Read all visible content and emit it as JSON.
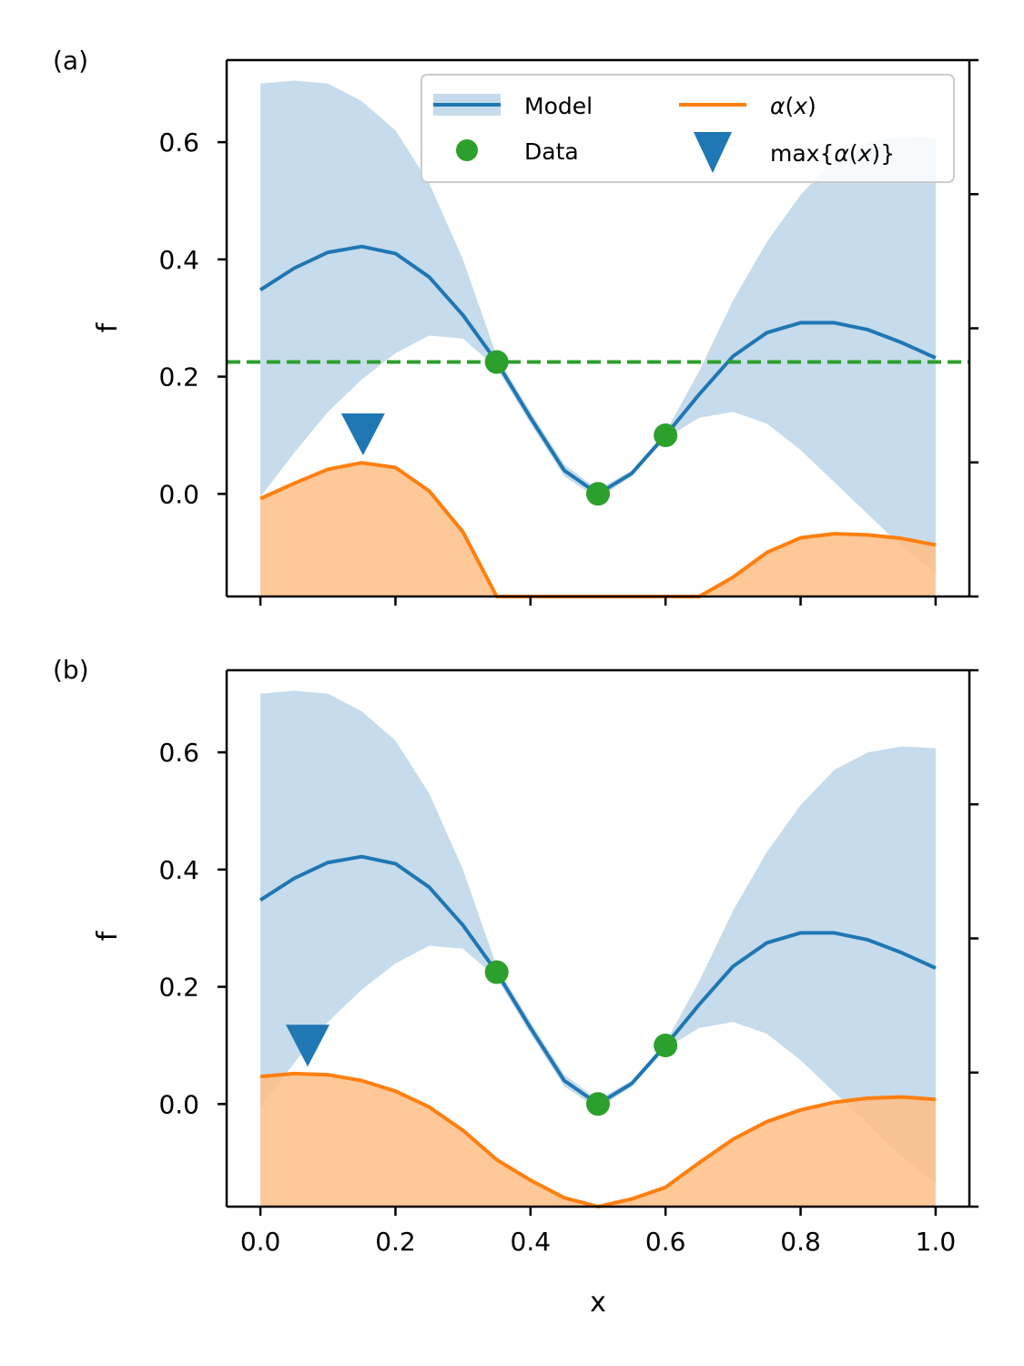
{
  "chart_data": [
    {
      "type": "line",
      "panel_label": "(a)",
      "xlabel": "",
      "ylabel": "f",
      "xlim": [
        -0.05,
        1.05
      ],
      "ylim": [
        -0.175,
        0.74
      ],
      "x_ticks": [
        0.0,
        0.2,
        0.4,
        0.6,
        0.8,
        1.0
      ],
      "x_ticklabels_shown": false,
      "y_ticks": [
        0.0,
        0.2,
        0.4,
        0.6
      ],
      "y_ticklabels": [
        "0.0",
        "0.2",
        "0.4",
        "0.6"
      ],
      "right_axis_ticks_unlabeled": 4,
      "model_mean": {
        "name": "Model",
        "color": "#1f77b4",
        "x": [
          0.0,
          0.05,
          0.1,
          0.15,
          0.2,
          0.25,
          0.3,
          0.35,
          0.4,
          0.45,
          0.5,
          0.55,
          0.6,
          0.65,
          0.7,
          0.75,
          0.8,
          0.85,
          0.9,
          0.95,
          1.0
        ],
        "y": [
          0.348,
          0.385,
          0.412,
          0.422,
          0.41,
          0.37,
          0.305,
          0.225,
          0.13,
          0.04,
          0.0,
          0.035,
          0.1,
          0.17,
          0.235,
          0.275,
          0.292,
          0.292,
          0.28,
          0.258,
          0.232
        ]
      },
      "model_band": {
        "color": "#c6dbeb",
        "x": [
          0.0,
          0.05,
          0.1,
          0.15,
          0.2,
          0.25,
          0.3,
          0.35,
          0.4,
          0.45,
          0.5,
          0.55,
          0.6,
          0.65,
          0.7,
          0.75,
          0.8,
          0.85,
          0.9,
          0.95,
          1.0
        ],
        "upper": [
          0.7,
          0.705,
          0.7,
          0.67,
          0.62,
          0.53,
          0.4,
          0.235,
          0.14,
          0.05,
          0.008,
          0.04,
          0.105,
          0.21,
          0.33,
          0.43,
          0.51,
          0.57,
          0.6,
          0.61,
          0.607
        ],
        "lower": [
          -0.005,
          0.07,
          0.14,
          0.195,
          0.24,
          0.27,
          0.265,
          0.215,
          0.12,
          0.03,
          -0.008,
          0.03,
          0.095,
          0.13,
          0.14,
          0.12,
          0.075,
          0.02,
          -0.035,
          -0.09,
          -0.135
        ]
      },
      "acquisition": {
        "name": "α(x)",
        "color": "#ff7f0e",
        "fill_color": "#ffbe86",
        "x": [
          0.0,
          0.05,
          0.1,
          0.15,
          0.2,
          0.25,
          0.3,
          0.35,
          0.4,
          0.45,
          0.5,
          0.55,
          0.6,
          0.65,
          0.7,
          0.75,
          0.8,
          0.85,
          0.9,
          0.95,
          1.0
        ],
        "y": [
          -0.008,
          0.018,
          0.042,
          0.053,
          0.045,
          0.005,
          -0.065,
          -0.175,
          -0.175,
          -0.175,
          -0.175,
          -0.175,
          -0.175,
          -0.175,
          -0.142,
          -0.1,
          -0.075,
          -0.068,
          -0.07,
          -0.076,
          -0.087
        ]
      },
      "data_points": {
        "name": "Data",
        "color": "#2ca02c",
        "x": [
          0.35,
          0.5,
          0.6
        ],
        "y": [
          0.225,
          0.0,
          0.1
        ]
      },
      "acq_max_marker": {
        "name": "max{α(x)}",
        "color": "#1f77b4",
        "x": 0.152,
        "y": 0.1
      },
      "best_value_line": {
        "color": "#2ca02c",
        "y": 0.225,
        "style": "dashed"
      },
      "legend": {
        "position": "top-right",
        "columns": 2,
        "entries": [
          {
            "label": "Model"
          },
          {
            "label": "Data"
          },
          {
            "label_math": "α(x)",
            "label_main": "α",
            "label_arg": "x"
          },
          {
            "label_math": "max{α(x)}",
            "label_prefix": "max{",
            "label_main": "α",
            "label_arg": "x",
            "label_suffix": "}"
          }
        ]
      }
    },
    {
      "type": "line",
      "panel_label": "(b)",
      "xlabel": "x",
      "ylabel": "f",
      "xlim": [
        -0.05,
        1.05
      ],
      "ylim": [
        -0.175,
        0.74
      ],
      "x_ticks": [
        0.0,
        0.2,
        0.4,
        0.6,
        0.8,
        1.0
      ],
      "x_ticklabels": [
        "0.0",
        "0.2",
        "0.4",
        "0.6",
        "0.8",
        "1.0"
      ],
      "y_ticks": [
        0.0,
        0.2,
        0.4,
        0.6
      ],
      "y_ticklabels": [
        "0.0",
        "0.2",
        "0.4",
        "0.6"
      ],
      "right_axis_ticks_unlabeled": 4,
      "model_mean": {
        "name": "Model",
        "color": "#1f77b4",
        "x": [
          0.0,
          0.05,
          0.1,
          0.15,
          0.2,
          0.25,
          0.3,
          0.35,
          0.4,
          0.45,
          0.5,
          0.55,
          0.6,
          0.65,
          0.7,
          0.75,
          0.8,
          0.85,
          0.9,
          0.95,
          1.0
        ],
        "y": [
          0.348,
          0.385,
          0.412,
          0.422,
          0.41,
          0.37,
          0.305,
          0.225,
          0.13,
          0.04,
          0.0,
          0.035,
          0.1,
          0.17,
          0.235,
          0.275,
          0.292,
          0.292,
          0.28,
          0.258,
          0.232
        ]
      },
      "model_band": {
        "color": "#c6dbeb",
        "x": [
          0.0,
          0.05,
          0.1,
          0.15,
          0.2,
          0.25,
          0.3,
          0.35,
          0.4,
          0.45,
          0.5,
          0.55,
          0.6,
          0.65,
          0.7,
          0.75,
          0.8,
          0.85,
          0.9,
          0.95,
          1.0
        ],
        "upper": [
          0.7,
          0.705,
          0.7,
          0.67,
          0.62,
          0.53,
          0.4,
          0.235,
          0.14,
          0.05,
          0.008,
          0.04,
          0.105,
          0.21,
          0.33,
          0.43,
          0.51,
          0.57,
          0.6,
          0.61,
          0.607
        ],
        "lower": [
          -0.005,
          0.07,
          0.14,
          0.195,
          0.24,
          0.27,
          0.265,
          0.215,
          0.12,
          0.03,
          -0.008,
          0.03,
          0.095,
          0.13,
          0.14,
          0.12,
          0.075,
          0.02,
          -0.035,
          -0.09,
          -0.135
        ]
      },
      "acquisition": {
        "name": "α(x)",
        "color": "#ff7f0e",
        "fill_color": "#ffbe86",
        "x": [
          0.0,
          0.05,
          0.1,
          0.15,
          0.2,
          0.25,
          0.3,
          0.35,
          0.4,
          0.45,
          0.5,
          0.55,
          0.6,
          0.65,
          0.7,
          0.75,
          0.8,
          0.85,
          0.9,
          0.95,
          1.0
        ],
        "y": [
          0.047,
          0.052,
          0.05,
          0.04,
          0.022,
          -0.005,
          -0.045,
          -0.095,
          -0.13,
          -0.16,
          -0.175,
          -0.162,
          -0.142,
          -0.1,
          -0.06,
          -0.03,
          -0.01,
          0.003,
          0.01,
          0.012,
          0.008
        ]
      },
      "data_points": {
        "name": "Data",
        "color": "#2ca02c",
        "x": [
          0.35,
          0.5,
          0.6
        ],
        "y": [
          0.225,
          0.0,
          0.1
        ]
      },
      "acq_max_marker": {
        "name": "max{α(x)}",
        "color": "#1f77b4",
        "x": 0.07,
        "y": 0.098
      }
    }
  ]
}
